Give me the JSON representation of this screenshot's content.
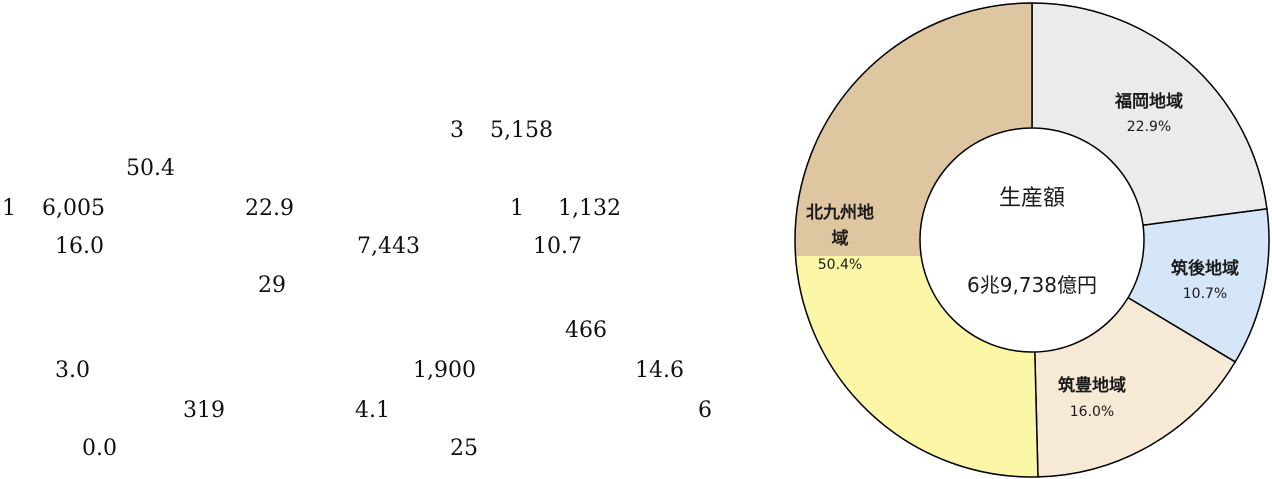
{
  "text_fragments": [
    "3",
    "5,158",
    "50.4",
    "1",
    "6,005",
    "22.9",
    "1",
    "1,132",
    "16.0",
    "7,443",
    "10.7",
    "29",
    "466",
    "3.0",
    "1,900",
    "14.6",
    "319",
    "4.1",
    "6",
    "0.0",
    "25"
  ],
  "chart_data": {
    "type": "pie",
    "donut": true,
    "center_title": "生産額",
    "center_value": "6兆9,738億円",
    "slices": [
      {
        "name": "福岡地域",
        "name_line2": "",
        "percent": 22.9,
        "label": "22.9%",
        "color": "#ebebeb"
      },
      {
        "name": "筑後地域",
        "name_line2": "",
        "percent": 10.7,
        "label": "10.7%",
        "color": "#d4e6f7"
      },
      {
        "name": "筑豊地域",
        "name_line2": "",
        "percent": 16.0,
        "label": "16.0%",
        "color": "#f6ead6"
      },
      {
        "name": "北九州地",
        "name_line2": "域",
        "percent": 50.4,
        "label": "50.4%",
        "color": "#ddc6a0",
        "color_lower": "#fbf7a6"
      }
    ]
  }
}
